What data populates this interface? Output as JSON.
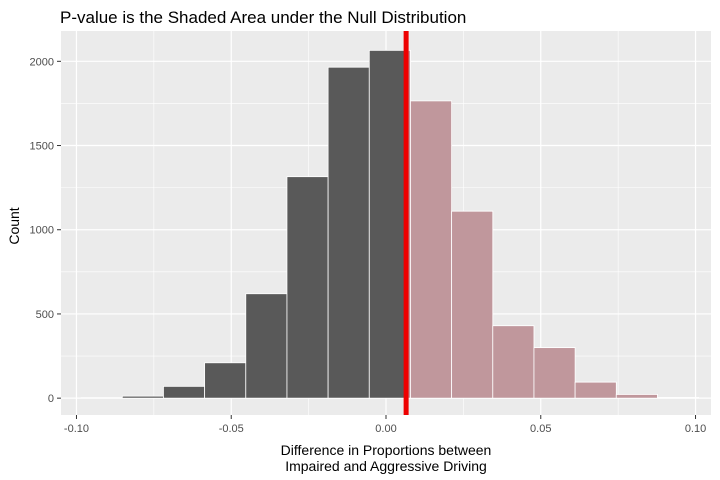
{
  "chart_data": {
    "type": "bar",
    "title": "P-value is the Shaded Area under the Null Distribution",
    "xlabel_lines": [
      "Difference in Proportions between",
      "Impaired and Aggressive Driving"
    ],
    "ylabel": "Count",
    "xlim": [
      -0.105,
      0.105
    ],
    "ylim": [
      -100,
      2180
    ],
    "x_ticks": [
      {
        "value": -0.1,
        "label": "-0.10"
      },
      {
        "value": -0.05,
        "label": "-0.05"
      },
      {
        "value": 0.0,
        "label": "0.00"
      },
      {
        "value": 0.05,
        "label": "0.05"
      },
      {
        "value": 0.1,
        "label": "0.10"
      }
    ],
    "y_ticks": [
      {
        "value": 0,
        "label": "0"
      },
      {
        "value": 500,
        "label": "500"
      },
      {
        "value": 1000,
        "label": "1000"
      },
      {
        "value": 1500,
        "label": "1500"
      },
      {
        "value": 2000,
        "label": "2000"
      }
    ],
    "bins": [
      {
        "x0": -0.0985,
        "x1": -0.0852,
        "count": 3
      },
      {
        "x0": -0.0852,
        "x1": -0.0719,
        "count": 12
      },
      {
        "x0": -0.0719,
        "x1": -0.0586,
        "count": 70
      },
      {
        "x0": -0.0586,
        "x1": -0.0453,
        "count": 210
      },
      {
        "x0": -0.0453,
        "x1": -0.032,
        "count": 620
      },
      {
        "x0": -0.032,
        "x1": -0.0187,
        "count": 1315
      },
      {
        "x0": -0.0187,
        "x1": -0.0054,
        "count": 1965
      },
      {
        "x0": -0.0054,
        "x1": 0.0079,
        "count": 2065
      },
      {
        "x0": 0.0079,
        "x1": 0.0212,
        "count": 1765
      },
      {
        "x0": 0.0212,
        "x1": 0.0345,
        "count": 1110
      },
      {
        "x0": 0.0345,
        "x1": 0.0478,
        "count": 430
      },
      {
        "x0": 0.0478,
        "x1": 0.0611,
        "count": 300
      },
      {
        "x0": 0.0611,
        "x1": 0.0744,
        "count": 95
      },
      {
        "x0": 0.0744,
        "x1": 0.0877,
        "count": 22
      },
      {
        "x0": 0.0877,
        "x1": 0.101,
        "count": 4
      }
    ],
    "observed_statistic": 0.0065,
    "colors": {
      "panel_bg": "#ebebeb",
      "grid": "#ffffff",
      "bar_fill": "#595959",
      "shade_fill": "#c0979c",
      "bar_stroke": "#ffffff",
      "line": "#ee0000"
    }
  }
}
